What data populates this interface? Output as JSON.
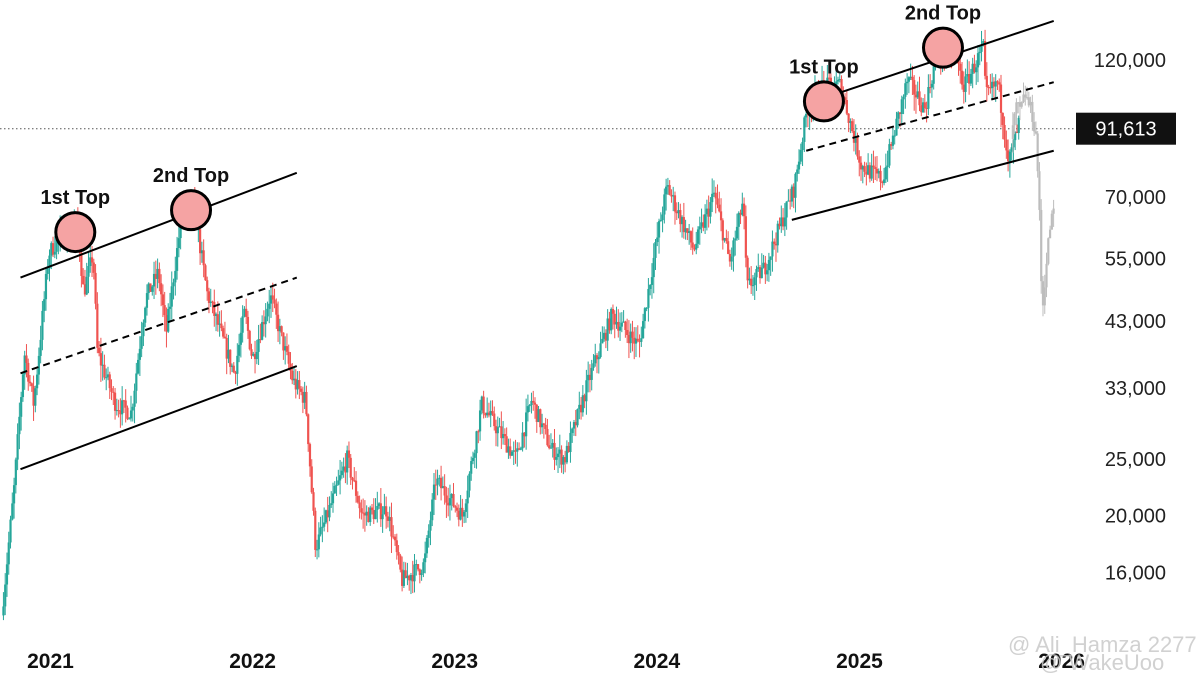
{
  "chart_data": {
    "type": "candlestick",
    "title": "",
    "xlabel": "",
    "ylabel": "",
    "y_scale": "log",
    "ylim": [
      12500,
      152000
    ],
    "xlim": [
      "2020-11-25",
      "2026-03-15"
    ],
    "y_ticks": [
      "120,000",
      "70,000",
      "55,000",
      "43,000",
      "33,000",
      "25,000",
      "20,000",
      "16,000"
    ],
    "y_tick_values": [
      120000,
      70000,
      55000,
      43000,
      33000,
      25000,
      20000,
      16000
    ],
    "x_ticks": [
      "2021",
      "2022",
      "2023",
      "2024",
      "2025",
      "2026"
    ],
    "x_tick_dates": [
      "2021-01-01",
      "2022-01-01",
      "2023-01-01",
      "2024-01-01",
      "2025-01-01",
      "2026-01-01"
    ],
    "current_price": {
      "label": "91,613",
      "value": 91613
    },
    "colors": {
      "up": "#26a69a",
      "down": "#ef5350",
      "projection": "#bdbdbd",
      "top_marker": "#f5a3a3",
      "channel": "#000000"
    },
    "price_path": [
      [
        "2020-11-28",
        13500
      ],
      [
        "2020-12-20",
        22000
      ],
      [
        "2021-01-08",
        38000
      ],
      [
        "2021-01-25",
        31000
      ],
      [
        "2021-02-21",
        56000
      ],
      [
        "2021-03-13",
        60000
      ],
      [
        "2021-04-14",
        63000
      ],
      [
        "2021-04-25",
        48000
      ],
      [
        "2021-05-12",
        56000
      ],
      [
        "2021-05-20",
        38000
      ],
      [
        "2021-06-22",
        31000
      ],
      [
        "2021-07-20",
        30000
      ],
      [
        "2021-08-15",
        47000
      ],
      [
        "2021-09-07",
        52000
      ],
      [
        "2021-09-21",
        41000
      ],
      [
        "2021-10-20",
        66000
      ],
      [
        "2021-11-10",
        68000
      ],
      [
        "2021-12-04",
        48000
      ],
      [
        "2022-01-22",
        35000
      ],
      [
        "2022-02-10",
        44500
      ],
      [
        "2022-02-24",
        37000
      ],
      [
        "2022-03-28",
        47500
      ],
      [
        "2022-05-08",
        34000
      ],
      [
        "2022-05-31",
        31500
      ],
      [
        "2022-06-18",
        17600
      ],
      [
        "2022-08-14",
        25000
      ],
      [
        "2022-09-10",
        20000
      ],
      [
        "2022-10-25",
        20500
      ],
      [
        "2022-11-21",
        15500
      ],
      [
        "2022-12-31",
        16500
      ],
      [
        "2023-01-21",
        23000
      ],
      [
        "2023-03-10",
        20000
      ],
      [
        "2023-04-14",
        31000
      ],
      [
        "2023-06-15",
        25000
      ],
      [
        "2023-07-13",
        31500
      ],
      [
        "2023-08-17",
        26000
      ],
      [
        "2023-09-11",
        25000
      ],
      [
        "2023-10-24",
        34000
      ],
      [
        "2023-12-05",
        44000
      ],
      [
        "2024-01-23",
        39000
      ],
      [
        "2024-02-28",
        62000
      ],
      [
        "2024-03-14",
        73000
      ],
      [
        "2024-05-01",
        57000
      ],
      [
        "2024-06-07",
        71000
      ],
      [
        "2024-07-05",
        54000
      ],
      [
        "2024-07-29",
        69000
      ],
      [
        "2024-08-05",
        49000
      ],
      [
        "2024-09-06",
        53000
      ],
      [
        "2024-10-29",
        72500
      ],
      [
        "2024-11-22",
        99500
      ],
      [
        "2024-12-17",
        108000
      ],
      [
        "2025-01-21",
        109000
      ],
      [
        "2025-02-28",
        79000
      ],
      [
        "2025-04-07",
        75000
      ],
      [
        "2025-05-22",
        111000
      ],
      [
        "2025-06-22",
        99000
      ],
      [
        "2025-07-14",
        123000
      ],
      [
        "2025-08-14",
        124500
      ],
      [
        "2025-09-01",
        108000
      ],
      [
        "2025-10-06",
        126000
      ],
      [
        "2025-10-10",
        104000
      ],
      [
        "2025-11-01",
        110000
      ],
      [
        "2025-11-21",
        80500
      ],
      [
        "2025-12-10",
        94000
      ]
    ],
    "projection_path": [
      [
        "2025-11-25",
        88000
      ],
      [
        "2025-12-05",
        100000
      ],
      [
        "2025-12-12",
        98000
      ],
      [
        "2025-12-20",
        105000
      ],
      [
        "2026-01-01",
        98000
      ],
      [
        "2026-01-10",
        88000
      ],
      [
        "2026-01-16",
        62000
      ],
      [
        "2026-01-20",
        44000
      ],
      [
        "2026-01-26",
        52000
      ],
      [
        "2026-02-03",
        62000
      ],
      [
        "2026-02-12",
        68000
      ]
    ],
    "channels": [
      {
        "name": "",
        "style": "solid",
        "from": [
          "2021-01-01",
          51000
        ],
        "to": [
          "2022-05-15",
          77000
        ]
      },
      {
        "name": "",
        "style": "dashed",
        "from": [
          "2021-01-01",
          35000
        ],
        "to": [
          "2022-05-15",
          51000
        ]
      },
      {
        "name": "",
        "style": "solid",
        "from": [
          "2021-01-01",
          24000
        ],
        "to": [
          "2022-05-15",
          36000
        ]
      },
      {
        "name": "",
        "style": "solid",
        "from": [
          "2024-11-20",
          101000
        ],
        "to": [
          "2026-02-10",
          140000
        ]
      },
      {
        "name": "",
        "style": "dashed",
        "from": [
          "2024-11-20",
          84000
        ],
        "to": [
          "2026-02-10",
          110000
        ]
      },
      {
        "name": "",
        "style": "solid",
        "from": [
          "2024-10-25",
          64000
        ],
        "to": [
          "2026-02-10",
          84000
        ]
      }
    ],
    "annotations": [
      {
        "text": "1st Top",
        "date": "2021-04-10",
        "value": 61000
      },
      {
        "text": "2nd Top",
        "date": "2021-11-05",
        "value": 66500
      },
      {
        "text": "1st Top",
        "date": "2024-12-22",
        "value": 102000
      },
      {
        "text": "2nd Top",
        "date": "2025-07-25",
        "value": 126000
      }
    ]
  },
  "watermark": {
    "line1": "@ Ali_Hamza 2277",
    "line2": "@ WakeUoo"
  }
}
